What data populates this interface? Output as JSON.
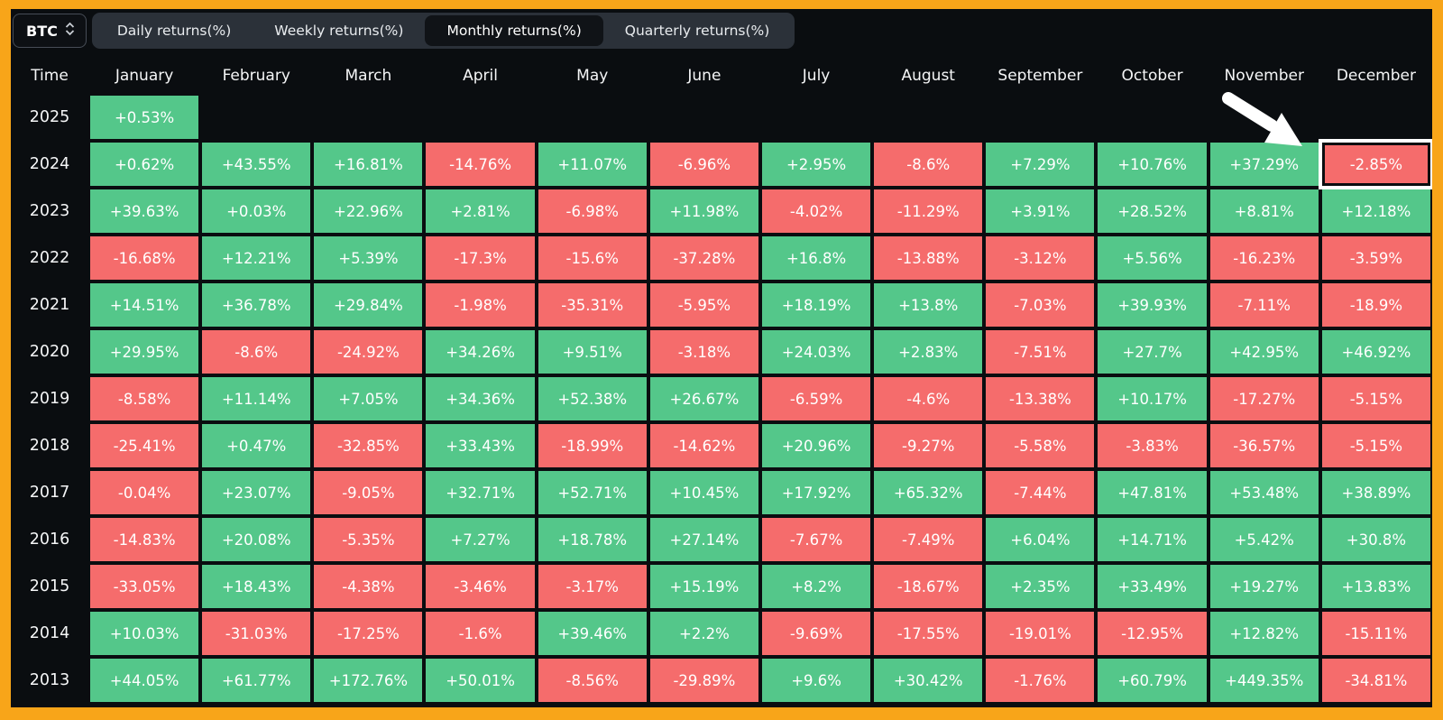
{
  "frame": {
    "border_color": "#f8a519"
  },
  "toolbar": {
    "symbol_select": {
      "value": "BTC"
    },
    "tabs": [
      {
        "label": "Daily returns(%)",
        "active": false
      },
      {
        "label": "Weekly returns(%)",
        "active": false
      },
      {
        "label": "Monthly returns(%)",
        "active": true
      },
      {
        "label": "Quarterly returns(%)",
        "active": false
      }
    ]
  },
  "chart_data": {
    "type": "heatmap",
    "title": "BTC Monthly returns(%)",
    "row_header": "Time",
    "columns": [
      "January",
      "February",
      "March",
      "April",
      "May",
      "June",
      "July",
      "August",
      "September",
      "October",
      "November",
      "December"
    ],
    "rows": [
      {
        "year": "2025",
        "values": [
          "+0.53%",
          "",
          "",
          "",
          "",
          "",
          "",
          "",
          "",
          "",
          "",
          ""
        ]
      },
      {
        "year": "2024",
        "values": [
          "+0.62%",
          "+43.55%",
          "+16.81%",
          "-14.76%",
          "+11.07%",
          "-6.96%",
          "+2.95%",
          "-8.6%",
          "+7.29%",
          "+10.76%",
          "+37.29%",
          "-2.85%"
        ]
      },
      {
        "year": "2023",
        "values": [
          "+39.63%",
          "+0.03%",
          "+22.96%",
          "+2.81%",
          "-6.98%",
          "+11.98%",
          "-4.02%",
          "-11.29%",
          "+3.91%",
          "+28.52%",
          "+8.81%",
          "+12.18%"
        ]
      },
      {
        "year": "2022",
        "values": [
          "-16.68%",
          "+12.21%",
          "+5.39%",
          "-17.3%",
          "-15.6%",
          "-37.28%",
          "+16.8%",
          "-13.88%",
          "-3.12%",
          "+5.56%",
          "-16.23%",
          "-3.59%"
        ]
      },
      {
        "year": "2021",
        "values": [
          "+14.51%",
          "+36.78%",
          "+29.84%",
          "-1.98%",
          "-35.31%",
          "-5.95%",
          "+18.19%",
          "+13.8%",
          "-7.03%",
          "+39.93%",
          "-7.11%",
          "-18.9%"
        ]
      },
      {
        "year": "2020",
        "values": [
          "+29.95%",
          "-8.6%",
          "-24.92%",
          "+34.26%",
          "+9.51%",
          "-3.18%",
          "+24.03%",
          "+2.83%",
          "-7.51%",
          "+27.7%",
          "+42.95%",
          "+46.92%"
        ]
      },
      {
        "year": "2019",
        "values": [
          "-8.58%",
          "+11.14%",
          "+7.05%",
          "+34.36%",
          "+52.38%",
          "+26.67%",
          "-6.59%",
          "-4.6%",
          "-13.38%",
          "+10.17%",
          "-17.27%",
          "-5.15%"
        ]
      },
      {
        "year": "2018",
        "values": [
          "-25.41%",
          "+0.47%",
          "-32.85%",
          "+33.43%",
          "-18.99%",
          "-14.62%",
          "+20.96%",
          "-9.27%",
          "-5.58%",
          "-3.83%",
          "-36.57%",
          "-5.15%"
        ]
      },
      {
        "year": "2017",
        "values": [
          "-0.04%",
          "+23.07%",
          "-9.05%",
          "+32.71%",
          "+52.71%",
          "+10.45%",
          "+17.92%",
          "+65.32%",
          "-7.44%",
          "+47.81%",
          "+53.48%",
          "+38.89%"
        ]
      },
      {
        "year": "2016",
        "values": [
          "-14.83%",
          "+20.08%",
          "-5.35%",
          "+7.27%",
          "+18.78%",
          "+27.14%",
          "-7.67%",
          "-7.49%",
          "+6.04%",
          "+14.71%",
          "+5.42%",
          "+30.8%"
        ]
      },
      {
        "year": "2015",
        "values": [
          "-33.05%",
          "+18.43%",
          "-4.38%",
          "-3.46%",
          "-3.17%",
          "+15.19%",
          "+8.2%",
          "-18.67%",
          "+2.35%",
          "+33.49%",
          "+19.27%",
          "+13.83%"
        ]
      },
      {
        "year": "2014",
        "values": [
          "+10.03%",
          "-31.03%",
          "-17.25%",
          "-1.6%",
          "+39.46%",
          "+2.2%",
          "-9.69%",
          "-17.55%",
          "-19.01%",
          "-12.95%",
          "+12.82%",
          "-15.11%"
        ]
      },
      {
        "year": "2013",
        "values": [
          "+44.05%",
          "+61.77%",
          "+172.76%",
          "+50.01%",
          "-8.56%",
          "-29.89%",
          "+9.6%",
          "+30.42%",
          "-1.76%",
          "+60.79%",
          "+449.35%",
          "-34.81%"
        ]
      }
    ],
    "highlight_cell": {
      "year": "2024",
      "column": "December",
      "value": "-2.85%"
    },
    "positive_color": "#54c78a",
    "negative_color": "#f56c6c"
  }
}
